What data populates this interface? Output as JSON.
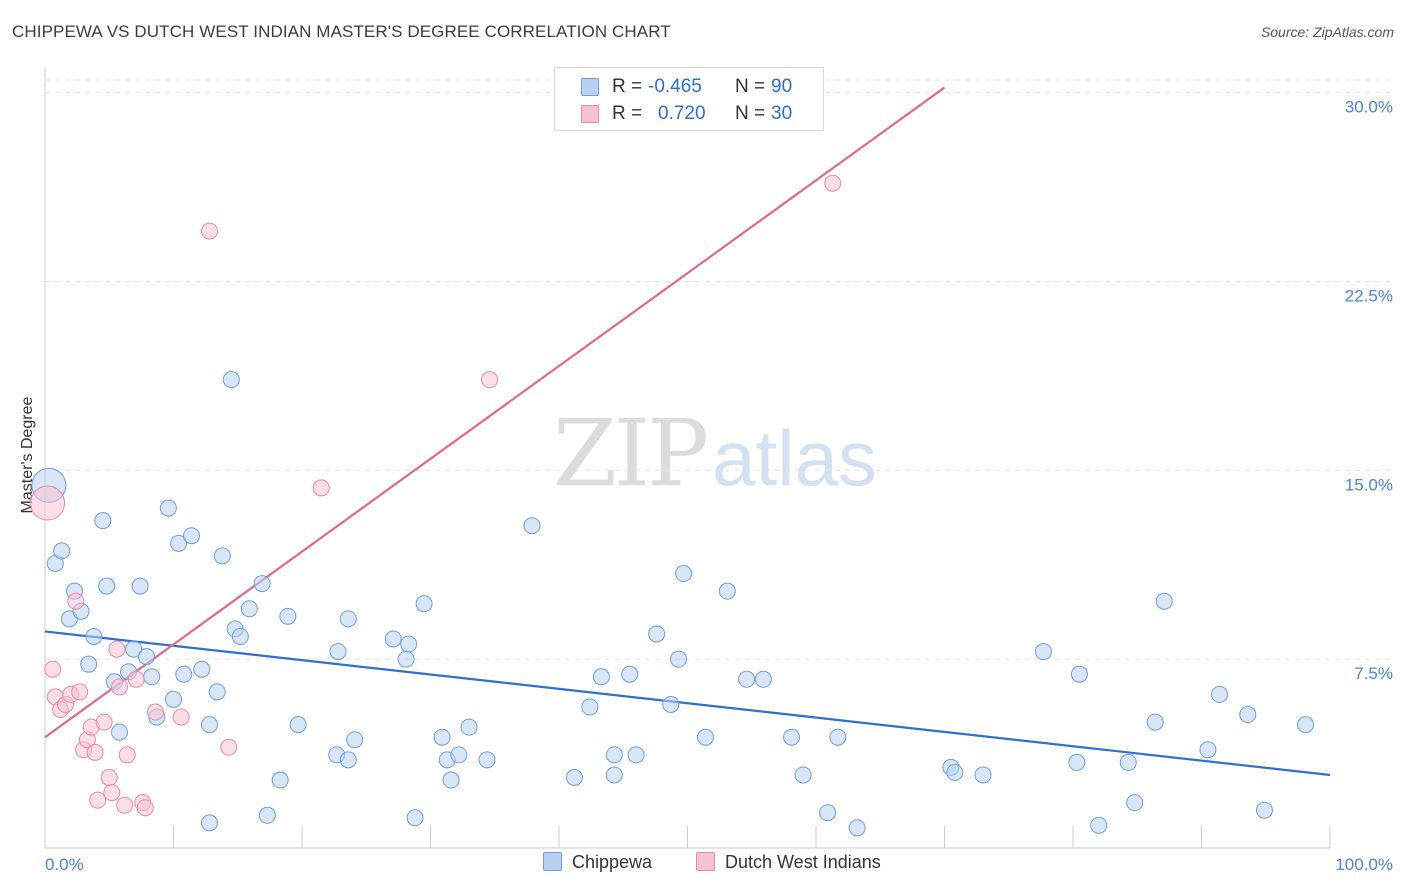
{
  "header": {
    "title": "CHIPPEWA VS DUTCH WEST INDIAN MASTER'S DEGREE CORRELATION CHART",
    "source": "Source: ZipAtlas.com"
  },
  "watermark": {
    "zip": "ZIP",
    "atlas": "atlas"
  },
  "legend": {
    "rows": [
      {
        "r_label": "R =",
        "r_value": "-0.465",
        "n_label": "N =",
        "n_value": "90"
      },
      {
        "r_label": "R =",
        "r_value": "0.720",
        "n_label": "N =",
        "n_value": "30"
      }
    ]
  },
  "colors": {
    "chippewa_fill": "#b8d1f1",
    "chippewa_stroke": "#6e9fd8",
    "chippewa_line": "#2f6fcf",
    "dwi_fill": "#f7c3d3",
    "dwi_stroke": "#e88aa8",
    "dwi_line": "#e06890",
    "grid": "#e2e2e2",
    "axis_text": "#4a86cf"
  },
  "chart_data": {
    "type": "scatter",
    "title": "CHIPPEWA VS DUTCH WEST INDIAN MASTER'S DEGREE CORRELATION CHART",
    "xlabel": "",
    "ylabel": "Master's Degree",
    "xlim": [
      0,
      100
    ],
    "ylim": [
      0,
      30.5
    ],
    "x_tick_labels": [
      "0.0%",
      "100.0%"
    ],
    "y_ticks": [
      7.5,
      15.0,
      22.5,
      30.0
    ],
    "y_tick_labels": [
      "7.5%",
      "15.0%",
      "22.5%",
      "30.0%"
    ],
    "grid": true,
    "series": [
      {
        "name": "Chippewa",
        "R": -0.465,
        "N": 90,
        "trend": {
          "x": [
            0,
            100
          ],
          "y": [
            8.6,
            2.9
          ]
        },
        "points": [
          [
            0.3,
            14.4,
            "large"
          ],
          [
            0.8,
            11.3
          ],
          [
            1.3,
            11.8
          ],
          [
            1.9,
            9.1
          ],
          [
            2.3,
            10.2
          ],
          [
            2.8,
            9.4
          ],
          [
            3.4,
            7.3
          ],
          [
            3.8,
            8.4
          ],
          [
            4.5,
            13.0
          ],
          [
            4.8,
            10.4
          ],
          [
            5.4,
            6.6
          ],
          [
            5.8,
            4.6
          ],
          [
            6.5,
            7.0
          ],
          [
            6.9,
            7.9
          ],
          [
            7.4,
            10.4
          ],
          [
            7.9,
            7.6
          ],
          [
            8.3,
            6.8
          ],
          [
            8.7,
            5.2
          ],
          [
            9.6,
            13.5
          ],
          [
            10.0,
            5.9
          ],
          [
            10.4,
            12.1
          ],
          [
            10.8,
            6.9
          ],
          [
            11.4,
            12.4
          ],
          [
            12.2,
            7.1
          ],
          [
            12.8,
            4.9
          ],
          [
            12.8,
            1.0
          ],
          [
            13.4,
            6.2
          ],
          [
            13.8,
            11.6
          ],
          [
            14.5,
            18.6
          ],
          [
            14.8,
            8.7
          ],
          [
            15.2,
            8.4
          ],
          [
            15.9,
            9.5
          ],
          [
            16.9,
            10.5
          ],
          [
            17.3,
            1.3
          ],
          [
            18.3,
            2.7
          ],
          [
            18.9,
            9.2
          ],
          [
            19.7,
            4.9
          ],
          [
            22.7,
            3.7
          ],
          [
            22.8,
            7.8
          ],
          [
            23.6,
            3.5
          ],
          [
            23.6,
            9.1
          ],
          [
            24.1,
            4.3
          ],
          [
            27.1,
            8.3
          ],
          [
            28.1,
            7.5
          ],
          [
            28.3,
            8.1
          ],
          [
            28.8,
            1.2
          ],
          [
            29.5,
            9.7
          ],
          [
            30.9,
            4.4
          ],
          [
            31.3,
            3.5
          ],
          [
            31.6,
            2.7
          ],
          [
            32.2,
            3.7
          ],
          [
            33.0,
            4.8
          ],
          [
            34.4,
            3.5
          ],
          [
            37.9,
            12.8
          ],
          [
            41.2,
            2.8
          ],
          [
            42.4,
            5.6
          ],
          [
            43.3,
            6.8
          ],
          [
            44.3,
            3.7
          ],
          [
            44.3,
            2.9
          ],
          [
            45.5,
            6.9
          ],
          [
            46.0,
            3.7
          ],
          [
            47.6,
            8.5
          ],
          [
            48.7,
            5.7
          ],
          [
            49.3,
            7.5
          ],
          [
            49.7,
            10.9
          ],
          [
            51.4,
            4.4
          ],
          [
            53.1,
            10.2
          ],
          [
            54.6,
            6.7
          ],
          [
            55.9,
            6.7
          ],
          [
            58.1,
            4.4
          ],
          [
            59.0,
            2.9
          ],
          [
            60.9,
            1.4
          ],
          [
            61.7,
            4.4
          ],
          [
            63.2,
            0.8
          ],
          [
            70.5,
            3.2
          ],
          [
            70.8,
            3.0
          ],
          [
            73.0,
            2.9
          ],
          [
            77.7,
            7.8
          ],
          [
            80.3,
            3.4
          ],
          [
            80.5,
            6.9
          ],
          [
            82.0,
            0.9
          ],
          [
            84.3,
            3.4
          ],
          [
            84.8,
            1.8
          ],
          [
            86.4,
            5.0
          ],
          [
            87.1,
            9.8
          ],
          [
            90.5,
            3.9
          ],
          [
            91.4,
            6.1
          ],
          [
            93.6,
            5.3
          ],
          [
            94.9,
            1.5
          ],
          [
            98.1,
            4.9
          ]
        ]
      },
      {
        "name": "Dutch West Indians",
        "R": 0.72,
        "N": 30,
        "trend": {
          "x": [
            0,
            70
          ],
          "y": [
            4.4,
            30.2
          ]
        },
        "points": [
          [
            0.2,
            13.7,
            "large"
          ],
          [
            0.6,
            7.1
          ],
          [
            0.8,
            6.0
          ],
          [
            1.2,
            5.5
          ],
          [
            1.6,
            5.7
          ],
          [
            2.0,
            6.1
          ],
          [
            2.4,
            9.8
          ],
          [
            2.7,
            6.2
          ],
          [
            3.0,
            3.9
          ],
          [
            3.3,
            4.3
          ],
          [
            3.6,
            4.8
          ],
          [
            3.9,
            3.8
          ],
          [
            4.1,
            1.9
          ],
          [
            4.6,
            5.0
          ],
          [
            5.0,
            2.8
          ],
          [
            5.6,
            7.9
          ],
          [
            5.8,
            6.4
          ],
          [
            6.2,
            1.7
          ],
          [
            6.4,
            3.7
          ],
          [
            7.1,
            6.7
          ],
          [
            7.6,
            1.8
          ],
          [
            7.8,
            1.6
          ],
          [
            8.6,
            5.4
          ],
          [
            10.6,
            5.2
          ],
          [
            12.8,
            24.5
          ],
          [
            14.3,
            4.0
          ],
          [
            21.5,
            14.3
          ],
          [
            34.6,
            18.6
          ],
          [
            61.3,
            26.4
          ],
          [
            5.2,
            2.2
          ]
        ]
      }
    ]
  },
  "bottom_legend": {
    "chippewa": "Chippewa",
    "dwi": "Dutch West Indians"
  }
}
